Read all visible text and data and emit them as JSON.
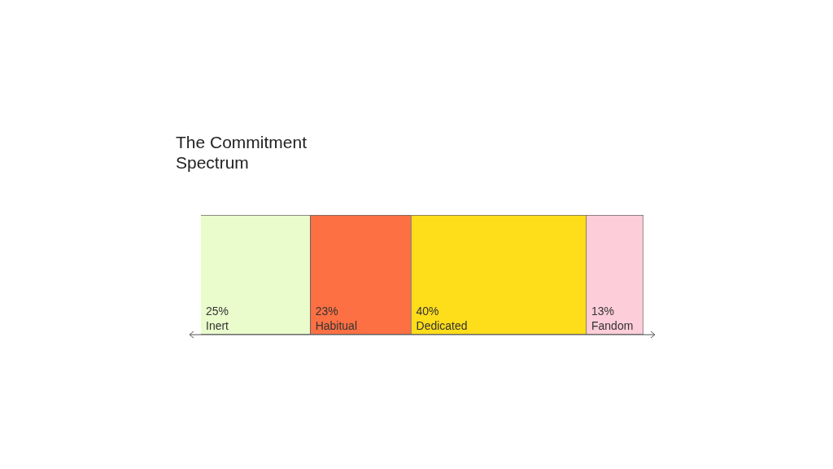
{
  "chart_data": {
    "type": "bar",
    "title": "The Commitment Spectrum",
    "orientation": "horizontal",
    "stacked": true,
    "categories": [
      null
    ],
    "xlim": [
      0,
      101
    ],
    "legend": false,
    "grid": false,
    "series": [
      {
        "name": "Inert",
        "color": "#eafccc",
        "values": [
          25
        ],
        "value_labels": [
          "25%"
        ]
      },
      {
        "name": "Habitual",
        "color": "#fd7043",
        "values": [
          23
        ],
        "value_labels": [
          "23%"
        ]
      },
      {
        "name": "Dedicated",
        "color": "#fedd1b",
        "values": [
          40
        ],
        "value_labels": [
          "40%"
        ]
      },
      {
        "name": "Fandom",
        "color": "#fdcdd9",
        "values": [
          13
        ],
        "value_labels": [
          "13%"
        ]
      }
    ]
  }
}
